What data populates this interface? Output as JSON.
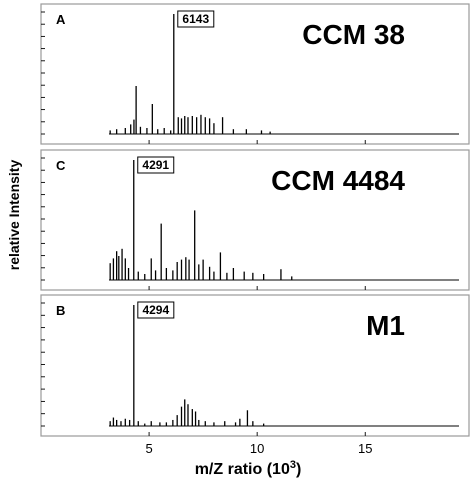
{
  "chart_data": {
    "type": "line",
    "xlabel": "m/Z ratio (10",
    "xlabel_sup": "3",
    "xlabel_close": ")",
    "ylabel": "relative Intensity",
    "xlim": [
      0,
      19.8
    ],
    "ylim": [
      0,
      100
    ],
    "x_ticks": [
      5,
      10,
      15
    ],
    "x_tick_labels": [
      "5",
      "10",
      "15"
    ],
    "grid": false,
    "panels": [
      {
        "letter": "A",
        "name": "CCM 38",
        "annotation": "6143",
        "annotation_x": 6.143,
        "peaks": [
          [
            3.2,
            3
          ],
          [
            3.5,
            4
          ],
          [
            3.9,
            5
          ],
          [
            4.15,
            8
          ],
          [
            4.3,
            12
          ],
          [
            4.4,
            40
          ],
          [
            4.6,
            6
          ],
          [
            4.9,
            5
          ],
          [
            5.15,
            25
          ],
          [
            5.4,
            4
          ],
          [
            5.7,
            5
          ],
          [
            6.0,
            3
          ],
          [
            6.143,
            100
          ],
          [
            6.35,
            14
          ],
          [
            6.5,
            13
          ],
          [
            6.65,
            15
          ],
          [
            6.8,
            14
          ],
          [
            7.0,
            15
          ],
          [
            7.2,
            14
          ],
          [
            7.4,
            16
          ],
          [
            7.6,
            14
          ],
          [
            7.8,
            13
          ],
          [
            8.0,
            9
          ],
          [
            8.4,
            14
          ],
          [
            8.9,
            4
          ],
          [
            9.5,
            4
          ],
          [
            10.2,
            3
          ],
          [
            10.6,
            2
          ]
        ]
      },
      {
        "letter": "C",
        "name": "CCM 4484",
        "annotation": "4291",
        "annotation_x": 4.291,
        "peaks": [
          [
            3.2,
            14
          ],
          [
            3.35,
            18
          ],
          [
            3.5,
            24
          ],
          [
            3.6,
            20
          ],
          [
            3.75,
            26
          ],
          [
            3.9,
            18
          ],
          [
            4.05,
            10
          ],
          [
            4.291,
            100
          ],
          [
            4.5,
            7
          ],
          [
            4.8,
            5
          ],
          [
            5.1,
            18
          ],
          [
            5.3,
            8
          ],
          [
            5.56,
            47
          ],
          [
            5.8,
            10
          ],
          [
            6.1,
            8
          ],
          [
            6.3,
            15
          ],
          [
            6.5,
            17
          ],
          [
            6.7,
            19
          ],
          [
            6.85,
            17
          ],
          [
            7.11,
            58
          ],
          [
            7.3,
            13
          ],
          [
            7.5,
            17
          ],
          [
            7.8,
            11
          ],
          [
            8.0,
            7
          ],
          [
            8.3,
            23
          ],
          [
            8.6,
            6
          ],
          [
            8.9,
            10
          ],
          [
            9.4,
            7
          ],
          [
            9.8,
            6
          ],
          [
            10.3,
            5
          ],
          [
            11.1,
            9
          ],
          [
            11.6,
            3
          ]
        ]
      },
      {
        "letter": "B",
        "name": "M1",
        "annotation": "4294",
        "annotation_x": 4.294,
        "peaks": [
          [
            3.2,
            4
          ],
          [
            3.35,
            7
          ],
          [
            3.5,
            5
          ],
          [
            3.7,
            4
          ],
          [
            3.9,
            6
          ],
          [
            4.1,
            5
          ],
          [
            4.294,
            100
          ],
          [
            4.5,
            4
          ],
          [
            4.8,
            2
          ],
          [
            5.1,
            4
          ],
          [
            5.5,
            3
          ],
          [
            5.8,
            3
          ],
          [
            6.1,
            5
          ],
          [
            6.3,
            9
          ],
          [
            6.5,
            16
          ],
          [
            6.65,
            22
          ],
          [
            6.8,
            18
          ],
          [
            7.0,
            14
          ],
          [
            7.15,
            12
          ],
          [
            7.3,
            5
          ],
          [
            7.6,
            4
          ],
          [
            8.0,
            3
          ],
          [
            8.5,
            4
          ],
          [
            9.0,
            3
          ],
          [
            9.2,
            6
          ],
          [
            9.55,
            13
          ],
          [
            9.8,
            4
          ],
          [
            10.3,
            2
          ]
        ]
      }
    ]
  }
}
